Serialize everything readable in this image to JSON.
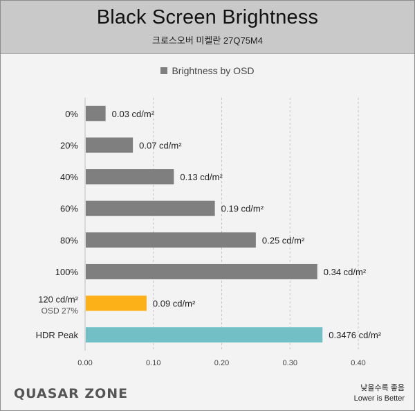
{
  "header": {
    "title": "Black Screen Brightness",
    "subtitle": "크로스오버 미켈란 27Q75M4"
  },
  "footer": {
    "logo_text": "QUASAR ZONE",
    "note_ko": "낮을수록 좋음",
    "note_en": "Lower is Better"
  },
  "chart_data": {
    "type": "bar",
    "orientation": "horizontal",
    "title": "Black Screen Brightness",
    "legend": {
      "label": "Brightness by OSD",
      "placement": "top-center"
    },
    "categories": [
      {
        "label": "0%",
        "sublabel": ""
      },
      {
        "label": "20%",
        "sublabel": ""
      },
      {
        "label": "40%",
        "sublabel": ""
      },
      {
        "label": "60%",
        "sublabel": ""
      },
      {
        "label": "80%",
        "sublabel": ""
      },
      {
        "label": "100%",
        "sublabel": ""
      },
      {
        "label": "120 cd/m²",
        "sublabel": "OSD 27%"
      },
      {
        "label": "HDR Peak",
        "sublabel": ""
      }
    ],
    "values": [
      0.03,
      0.07,
      0.13,
      0.19,
      0.25,
      0.34,
      0.09,
      0.3476
    ],
    "data_labels": [
      "0.03 cd/m²",
      "0.07 cd/m²",
      "0.13 cd/m²",
      "0.19 cd/m²",
      "0.25 cd/m²",
      "0.34 cd/m²",
      "0.09 cd/m²",
      "0.3476 cd/m²"
    ],
    "bar_colors": [
      "#7f7f7f",
      "#7f7f7f",
      "#7f7f7f",
      "#7f7f7f",
      "#7f7f7f",
      "#7f7f7f",
      "#fbb117",
      "#72bfc6"
    ],
    "xlim": [
      0,
      0.4
    ],
    "xticks": [
      "0.00",
      "0.10",
      "0.20",
      "0.30",
      "0.40"
    ],
    "xtick_values": [
      0,
      0.1,
      0.2,
      0.3,
      0.4
    ],
    "grid": {
      "vertical": true,
      "style": "dashed"
    }
  }
}
